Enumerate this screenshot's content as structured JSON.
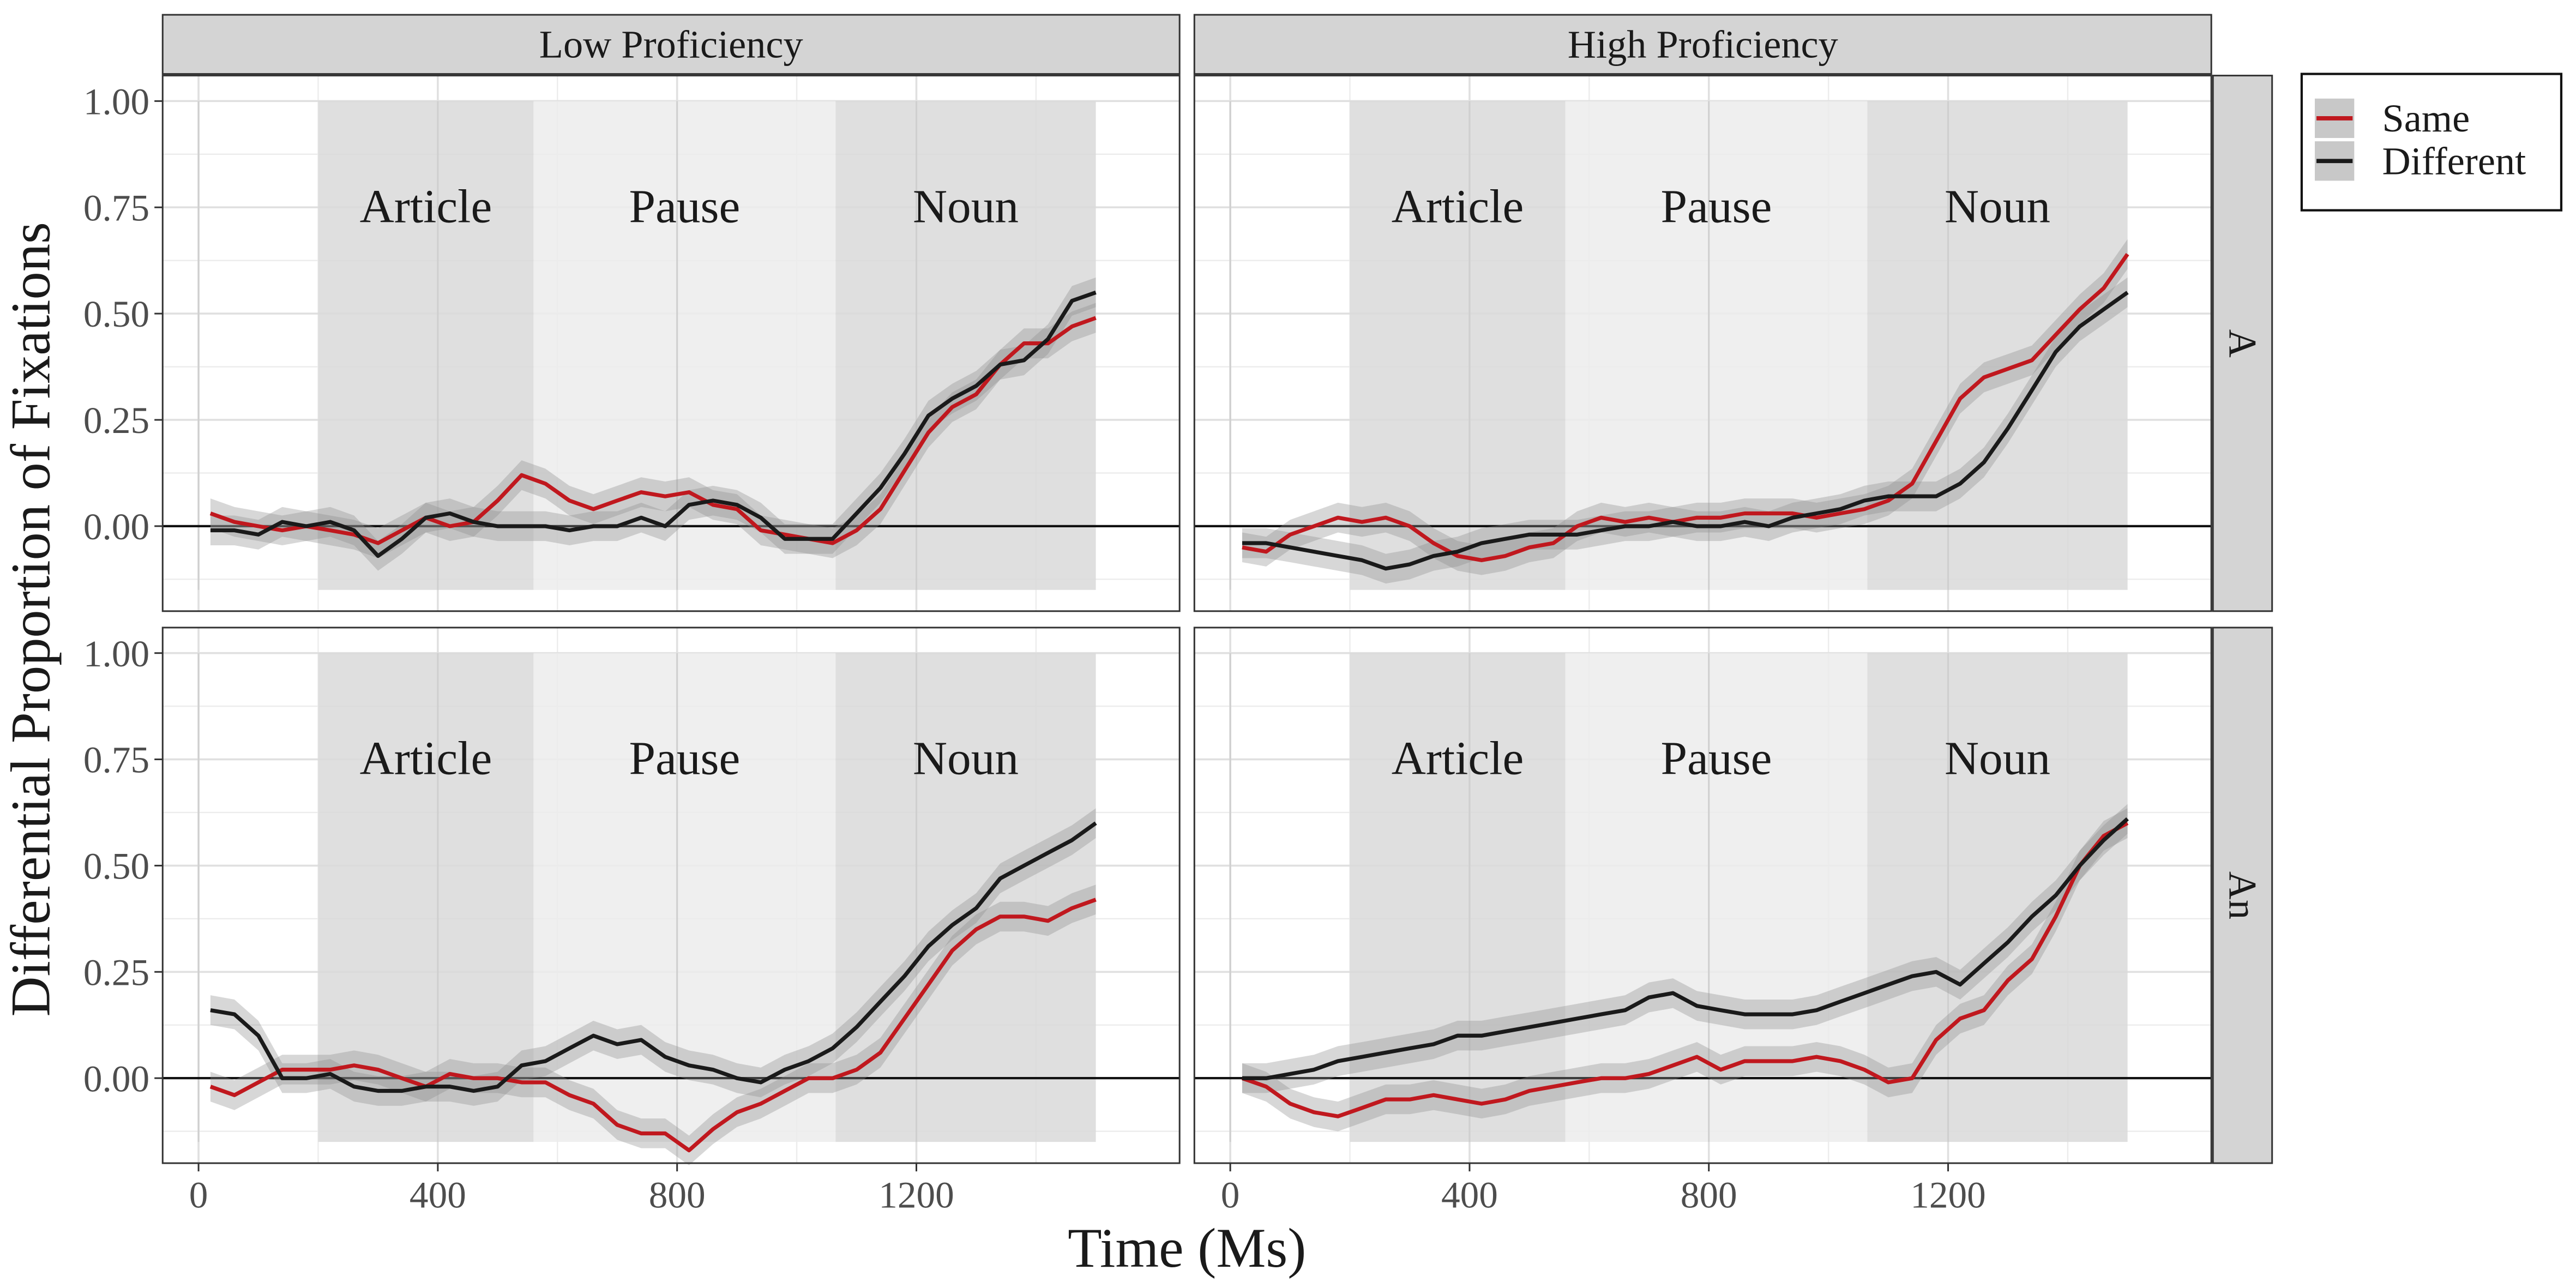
{
  "chart_data": {
    "type": "line",
    "xlabel": "Time (Ms)",
    "ylabel": "Differential Proportion of Fixations",
    "xlim": [
      -60,
      1640
    ],
    "ylim": [
      -0.2,
      1.06
    ],
    "x_ticks": [
      0,
      400,
      800,
      1200
    ],
    "y_ticks": [
      0.0,
      0.25,
      0.5,
      0.75,
      1.0
    ],
    "y_tick_labels": [
      "0.00",
      "0.25",
      "0.50",
      "0.75",
      "1.00"
    ],
    "column_facets": [
      "Low Proficiency",
      "High Proficiency"
    ],
    "row_facets": [
      "A",
      "An"
    ],
    "grid": true,
    "regions": [
      {
        "label": "Article",
        "x_start": 200,
        "x_end": 560,
        "shade": "#d9d9d9"
      },
      {
        "label": "Pause",
        "x_start": 560,
        "x_end": 1065,
        "shade": "#ececec"
      },
      {
        "label": "Noun",
        "x_start": 1065,
        "x_end": 1500,
        "shade": "#d9d9d9"
      }
    ],
    "region_y_range": [
      -0.15,
      1.0
    ],
    "legend": {
      "position": "right",
      "entries": [
        {
          "name": "Same",
          "color": "#c0181e"
        },
        {
          "name": "Different",
          "color": "#1a1a1a"
        }
      ]
    },
    "panels": [
      {
        "row": "A",
        "column": "Low Proficiency",
        "series": [
          {
            "name": "Same",
            "color": "#c0181e",
            "x": [
              20,
              60,
              100,
              140,
              180,
              220,
              260,
              300,
              340,
              380,
              420,
              460,
              500,
              540,
              580,
              620,
              660,
              700,
              740,
              780,
              820,
              860,
              900,
              940,
              980,
              1020,
              1060,
              1100,
              1140,
              1180,
              1220,
              1260,
              1300,
              1340,
              1380,
              1420,
              1460,
              1500
            ],
            "y": [
              0.03,
              0.01,
              0.0,
              -0.01,
              0.0,
              -0.01,
              -0.02,
              -0.04,
              -0.01,
              0.02,
              0.0,
              0.01,
              0.06,
              0.12,
              0.1,
              0.06,
              0.04,
              0.06,
              0.08,
              0.07,
              0.08,
              0.05,
              0.04,
              -0.01,
              -0.02,
              -0.03,
              -0.04,
              -0.01,
              0.04,
              0.13,
              0.22,
              0.28,
              0.31,
              0.38,
              0.43,
              0.43,
              0.47,
              0.49
            ]
          },
          {
            "name": "Different",
            "color": "#1a1a1a",
            "x": [
              20,
              60,
              100,
              140,
              180,
              220,
              260,
              300,
              340,
              380,
              420,
              460,
              500,
              540,
              580,
              620,
              660,
              700,
              740,
              780,
              820,
              860,
              900,
              940,
              980,
              1020,
              1060,
              1100,
              1140,
              1180,
              1220,
              1260,
              1300,
              1340,
              1380,
              1420,
              1460,
              1500
            ],
            "y": [
              -0.01,
              -0.01,
              -0.02,
              0.01,
              0.0,
              0.01,
              -0.01,
              -0.07,
              -0.03,
              0.02,
              0.03,
              0.01,
              0.0,
              0.0,
              0.0,
              -0.01,
              0.0,
              0.0,
              0.02,
              0.0,
              0.05,
              0.06,
              0.05,
              0.02,
              -0.03,
              -0.03,
              -0.03,
              0.03,
              0.09,
              0.17,
              0.26,
              0.3,
              0.33,
              0.38,
              0.39,
              0.44,
              0.53,
              0.55
            ]
          }
        ]
      },
      {
        "row": "A",
        "column": "High Proficiency",
        "series": [
          {
            "name": "Same",
            "color": "#c0181e",
            "x": [
              20,
              60,
              100,
              140,
              180,
              220,
              260,
              300,
              340,
              380,
              420,
              460,
              500,
              540,
              580,
              620,
              660,
              700,
              740,
              780,
              820,
              860,
              900,
              940,
              980,
              1020,
              1060,
              1100,
              1140,
              1180,
              1220,
              1260,
              1300,
              1340,
              1380,
              1420,
              1460,
              1500
            ],
            "y": [
              -0.05,
              -0.06,
              -0.02,
              0.0,
              0.02,
              0.01,
              0.02,
              0.0,
              -0.04,
              -0.07,
              -0.08,
              -0.07,
              -0.05,
              -0.04,
              0.0,
              0.02,
              0.01,
              0.02,
              0.01,
              0.02,
              0.02,
              0.03,
              0.03,
              0.03,
              0.02,
              0.03,
              0.04,
              0.06,
              0.1,
              0.2,
              0.3,
              0.35,
              0.37,
              0.39,
              0.45,
              0.51,
              0.56,
              0.64
            ]
          },
          {
            "name": "Different",
            "color": "#1a1a1a",
            "x": [
              20,
              60,
              100,
              140,
              180,
              220,
              260,
              300,
              340,
              380,
              420,
              460,
              500,
              540,
              580,
              620,
              660,
              700,
              740,
              780,
              820,
              860,
              900,
              940,
              980,
              1020,
              1060,
              1100,
              1140,
              1180,
              1220,
              1260,
              1300,
              1340,
              1380,
              1420,
              1460,
              1500
            ],
            "y": [
              -0.04,
              -0.04,
              -0.05,
              -0.06,
              -0.07,
              -0.08,
              -0.1,
              -0.09,
              -0.07,
              -0.06,
              -0.04,
              -0.03,
              -0.02,
              -0.02,
              -0.02,
              -0.01,
              0.0,
              0.0,
              0.01,
              0.0,
              0.0,
              0.01,
              0.0,
              0.02,
              0.03,
              0.04,
              0.06,
              0.07,
              0.07,
              0.07,
              0.1,
              0.15,
              0.23,
              0.32,
              0.41,
              0.47,
              0.51,
              0.55
            ]
          }
        ]
      },
      {
        "row": "An",
        "column": "Low Proficiency",
        "series": [
          {
            "name": "Same",
            "color": "#c0181e",
            "x": [
              20,
              60,
              100,
              140,
              180,
              220,
              260,
              300,
              340,
              380,
              420,
              460,
              500,
              540,
              580,
              620,
              660,
              700,
              740,
              780,
              820,
              860,
              900,
              940,
              980,
              1020,
              1060,
              1100,
              1140,
              1180,
              1220,
              1260,
              1300,
              1340,
              1380,
              1420,
              1460,
              1500
            ],
            "y": [
              -0.02,
              -0.04,
              -0.01,
              0.02,
              0.02,
              0.02,
              0.03,
              0.02,
              0.0,
              -0.02,
              0.01,
              0.0,
              0.0,
              -0.01,
              -0.01,
              -0.04,
              -0.06,
              -0.11,
              -0.13,
              -0.13,
              -0.17,
              -0.12,
              -0.08,
              -0.06,
              -0.03,
              0.0,
              0.0,
              0.02,
              0.06,
              0.14,
              0.22,
              0.3,
              0.35,
              0.38,
              0.38,
              0.37,
              0.4,
              0.42
            ]
          },
          {
            "name": "Different",
            "color": "#1a1a1a",
            "x": [
              20,
              60,
              100,
              140,
              180,
              220,
              260,
              300,
              340,
              380,
              420,
              460,
              500,
              540,
              580,
              620,
              660,
              700,
              740,
              780,
              820,
              860,
              900,
              940,
              980,
              1020,
              1060,
              1100,
              1140,
              1180,
              1220,
              1260,
              1300,
              1340,
              1380,
              1420,
              1460,
              1500
            ],
            "y": [
              0.16,
              0.15,
              0.1,
              0.0,
              0.0,
              0.01,
              -0.02,
              -0.03,
              -0.03,
              -0.02,
              -0.02,
              -0.03,
              -0.02,
              0.03,
              0.04,
              0.07,
              0.1,
              0.08,
              0.09,
              0.05,
              0.03,
              0.02,
              0.0,
              -0.01,
              0.02,
              0.04,
              0.07,
              0.12,
              0.18,
              0.24,
              0.31,
              0.36,
              0.4,
              0.47,
              0.5,
              0.53,
              0.56,
              0.6
            ]
          }
        ]
      },
      {
        "row": "An",
        "column": "High Proficiency",
        "series": [
          {
            "name": "Same",
            "color": "#c0181e",
            "x": [
              20,
              60,
              100,
              140,
              180,
              220,
              260,
              300,
              340,
              380,
              420,
              460,
              500,
              540,
              580,
              620,
              660,
              700,
              740,
              780,
              820,
              860,
              900,
              940,
              980,
              1020,
              1060,
              1100,
              1140,
              1180,
              1220,
              1260,
              1300,
              1340,
              1380,
              1420,
              1460,
              1500
            ],
            "y": [
              0.0,
              -0.02,
              -0.06,
              -0.08,
              -0.09,
              -0.07,
              -0.05,
              -0.05,
              -0.04,
              -0.05,
              -0.06,
              -0.05,
              -0.03,
              -0.02,
              -0.01,
              0.0,
              0.0,
              0.01,
              0.03,
              0.05,
              0.02,
              0.04,
              0.04,
              0.04,
              0.05,
              0.04,
              0.02,
              -0.01,
              0.0,
              0.09,
              0.14,
              0.16,
              0.23,
              0.28,
              0.38,
              0.5,
              0.57,
              0.6
            ]
          },
          {
            "name": "Different",
            "color": "#1a1a1a",
            "x": [
              20,
              60,
              100,
              140,
              180,
              220,
              260,
              300,
              340,
              380,
              420,
              460,
              500,
              540,
              580,
              620,
              660,
              700,
              740,
              780,
              820,
              860,
              900,
              940,
              980,
              1020,
              1060,
              1100,
              1140,
              1180,
              1220,
              1260,
              1300,
              1340,
              1380,
              1420,
              1460,
              1500
            ],
            "y": [
              0.0,
              0.0,
              0.01,
              0.02,
              0.04,
              0.05,
              0.06,
              0.07,
              0.08,
              0.1,
              0.1,
              0.11,
              0.12,
              0.13,
              0.14,
              0.15,
              0.16,
              0.19,
              0.2,
              0.17,
              0.16,
              0.15,
              0.15,
              0.15,
              0.16,
              0.18,
              0.2,
              0.22,
              0.24,
              0.25,
              0.22,
              0.27,
              0.32,
              0.38,
              0.43,
              0.5,
              0.56,
              0.61
            ]
          }
        ]
      }
    ]
  }
}
